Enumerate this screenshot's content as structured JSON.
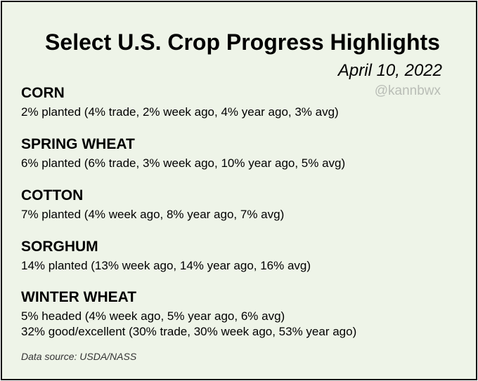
{
  "title": "Select U.S. Crop Progress Highlights",
  "date": "April 10, 2022",
  "handle": "@kannbwx",
  "crops": [
    {
      "name": "CORN",
      "lines": [
        "2% planted (4% trade, 2% week ago, 4% year ago, 3% avg)"
      ]
    },
    {
      "name": "SPRING WHEAT",
      "lines": [
        "6% planted (6% trade, 3% week ago, 10% year ago, 5% avg)"
      ]
    },
    {
      "name": "COTTON",
      "lines": [
        "7% planted (4% week ago, 8% year ago, 7% avg)"
      ]
    },
    {
      "name": "SORGHUM",
      "lines": [
        "14% planted (13% week ago, 14% year ago, 16% avg)"
      ]
    },
    {
      "name": "WINTER WHEAT",
      "lines": [
        "5% headed (4% week ago, 5% year ago, 6% avg)",
        "32% good/excellent (30% trade, 30% week ago, 53% year ago)"
      ]
    }
  ],
  "source": "Data source: USDA/NASS",
  "colors": {
    "background": "#eef4e8",
    "border": "#111111",
    "handle": "#b9bdb6"
  }
}
